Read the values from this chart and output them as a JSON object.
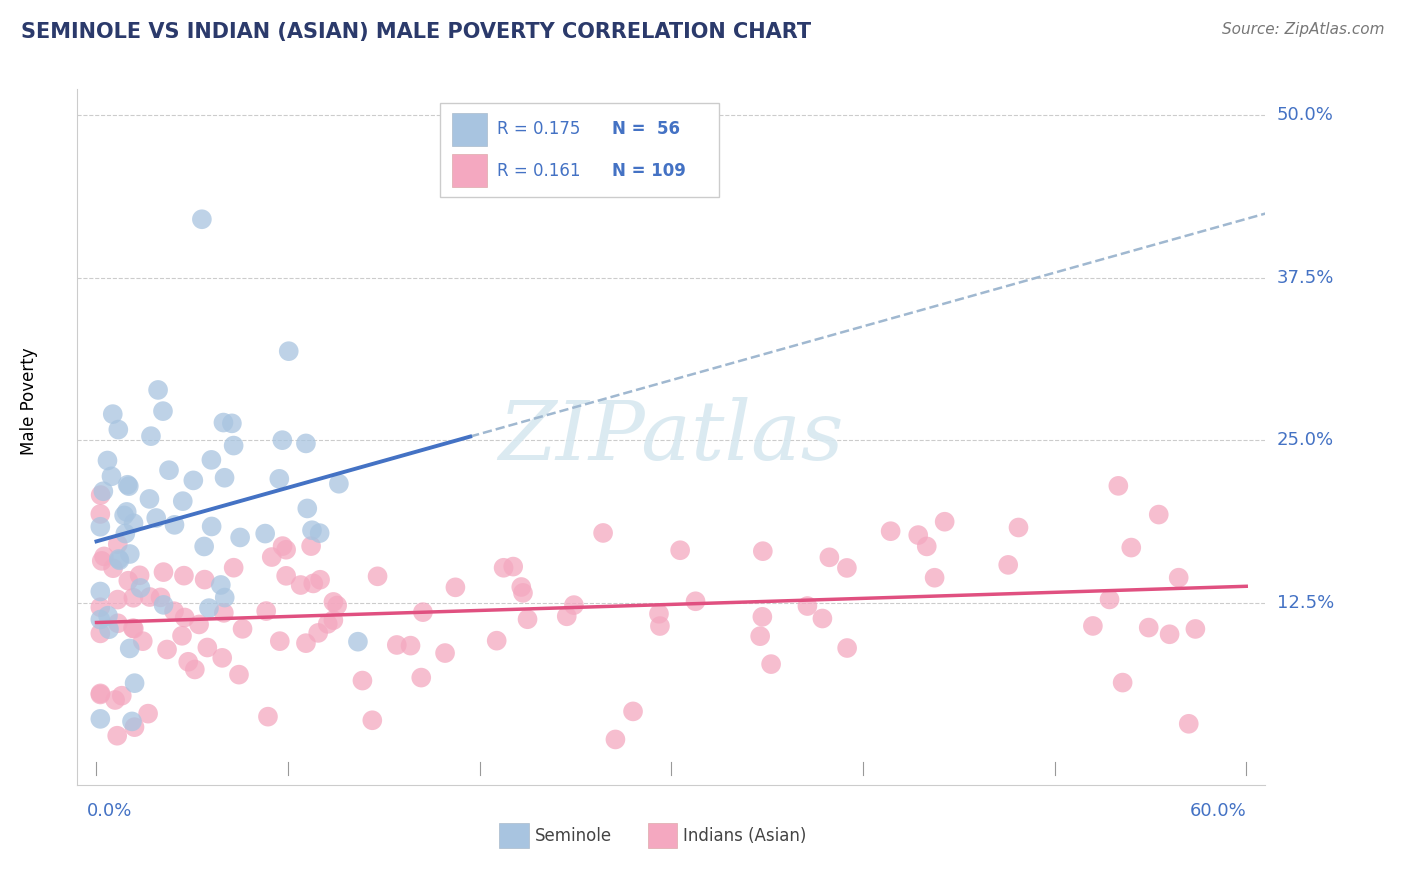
{
  "title": "SEMINOLE VS INDIAN (ASIAN) MALE POVERTY CORRELATION CHART",
  "source": "Source: ZipAtlas.com",
  "ylabel": "Male Poverty",
  "xlim": [
    0.0,
    0.6
  ],
  "ylim": [
    0.0,
    0.5
  ],
  "yticks": [
    0.125,
    0.25,
    0.375,
    0.5
  ],
  "ytick_labels": [
    "12.5%",
    "25.0%",
    "37.5%",
    "50.0%"
  ],
  "seminole_color": "#A8C4E0",
  "indian_color": "#F4A8C0",
  "regression_blue_color": "#4472C4",
  "regression_pink_color": "#E05080",
  "dashed_line_color": "#A0B8D0",
  "title_color": "#2B3A6B",
  "axis_label_color": "#4472C4",
  "watermark_color": "#D8E8F0",
  "legend_text_color": "#4472C4",
  "legend_N_color": "#4472C4",
  "legend_border_color": "#CCCCCC",
  "grid_color": "#CCCCCC",
  "spine_color": "#CCCCCC"
}
